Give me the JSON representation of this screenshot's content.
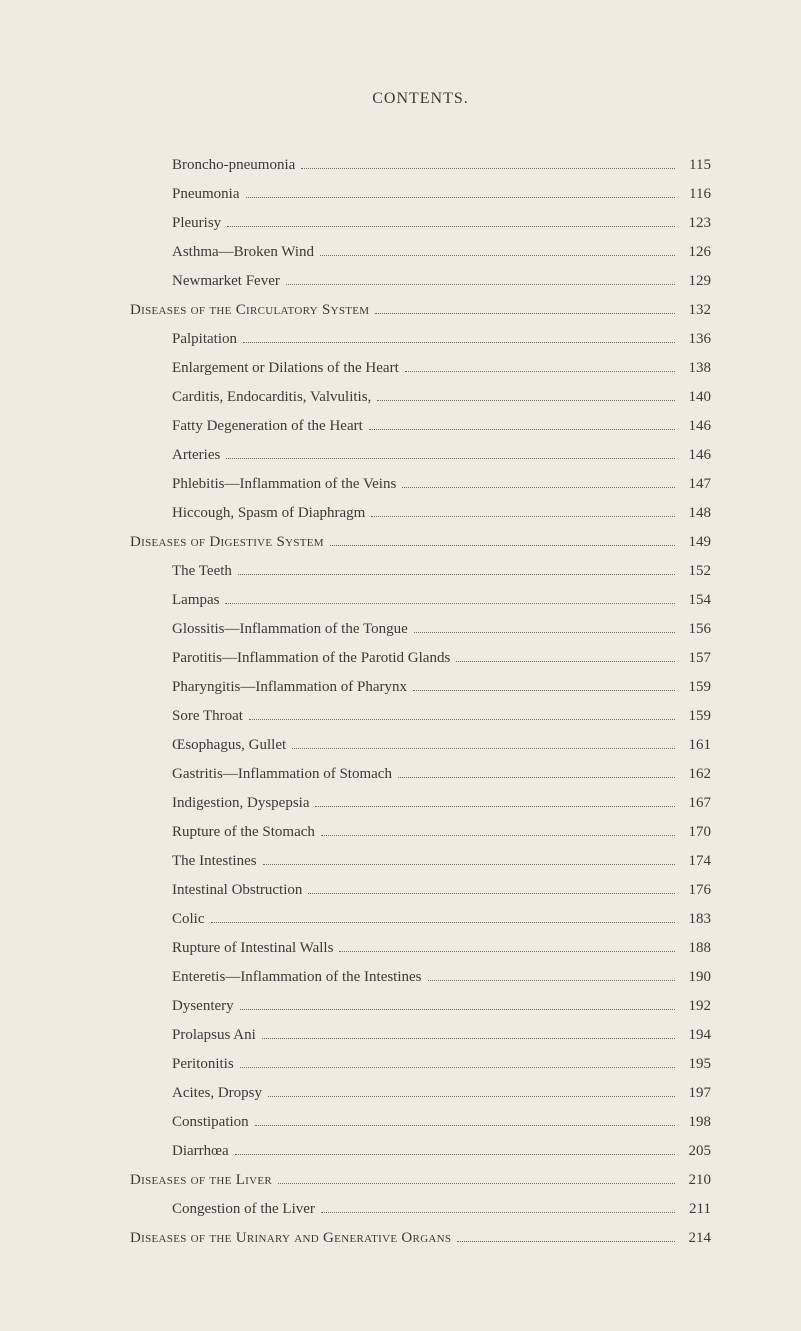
{
  "heading": "CONTENTS.",
  "entries": [
    {
      "type": "item",
      "label": "Broncho-pneumonia",
      "page": "115"
    },
    {
      "type": "item",
      "label": "Pneumonia",
      "page": "116"
    },
    {
      "type": "item",
      "label": "Pleurisy",
      "page": "123"
    },
    {
      "type": "item",
      "label": "Asthma—Broken Wind",
      "page": "126"
    },
    {
      "type": "item",
      "label": "Newmarket Fever",
      "page": "129"
    },
    {
      "type": "section",
      "label": "Diseases of the Circulatory System",
      "page": "132"
    },
    {
      "type": "item",
      "label": "Palpitation",
      "page": "136"
    },
    {
      "type": "item",
      "label": "Enlargement or Dilations of the Heart",
      "page": "138"
    },
    {
      "type": "item",
      "label": "Carditis, Endocarditis, Valvulitis,",
      "page": "140"
    },
    {
      "type": "item",
      "label": "Fatty Degeneration of the Heart",
      "page": "146"
    },
    {
      "type": "item",
      "label": "Arteries",
      "page": "146"
    },
    {
      "type": "item",
      "label": "Phlebitis—Inflammation of the Veins",
      "page": "147"
    },
    {
      "type": "item",
      "label": "Hiccough, Spasm of Diaphragm",
      "page": "148"
    },
    {
      "type": "section",
      "label": "Diseases of Digestive System",
      "page": "149"
    },
    {
      "type": "item",
      "label": "The Teeth",
      "page": "152"
    },
    {
      "type": "item",
      "label": "Lampas",
      "page": "154"
    },
    {
      "type": "item",
      "label": "Glossitis—Inflammation of the Tongue",
      "page": "156"
    },
    {
      "type": "item",
      "label": "Parotitis—Inflammation of the Parotid Glands",
      "page": "157"
    },
    {
      "type": "item",
      "label": "Pharyngitis—Inflammation of Pharynx",
      "page": "159"
    },
    {
      "type": "item",
      "label": "Sore Throat",
      "page": "159"
    },
    {
      "type": "item",
      "label": "Œsophagus, Gullet",
      "page": "161"
    },
    {
      "type": "item",
      "label": "Gastritis—Inflammation of Stomach",
      "page": "162"
    },
    {
      "type": "item",
      "label": "Indigestion, Dyspepsia",
      "page": "167"
    },
    {
      "type": "item",
      "label": "Rupture of the Stomach",
      "page": "170"
    },
    {
      "type": "item",
      "label": "The Intestines",
      "page": "174"
    },
    {
      "type": "item",
      "label": "Intestinal Obstruction",
      "page": "176"
    },
    {
      "type": "item",
      "label": "Colic",
      "page": "183"
    },
    {
      "type": "item",
      "label": "Rupture of Intestinal Walls",
      "page": "188"
    },
    {
      "type": "item",
      "label": "Enteretis—Inflammation of the Intestines",
      "page": "190"
    },
    {
      "type": "item",
      "label": "Dysentery",
      "page": "192"
    },
    {
      "type": "item",
      "label": "Prolapsus Ani",
      "page": "194"
    },
    {
      "type": "item",
      "label": "Peritonitis",
      "page": "195"
    },
    {
      "type": "item",
      "label": "Acites, Dropsy",
      "page": "197"
    },
    {
      "type": "item",
      "label": "Constipation",
      "page": "198"
    },
    {
      "type": "item",
      "label": "Diarrhœa",
      "page": "205"
    },
    {
      "type": "section",
      "label": "Diseases of the Liver",
      "page": "210"
    },
    {
      "type": "item",
      "label": "Congestion of the Liver",
      "page": "211"
    },
    {
      "type": "section",
      "label": "Diseases of the Urinary and Generative Organs",
      "page": "214"
    }
  ]
}
